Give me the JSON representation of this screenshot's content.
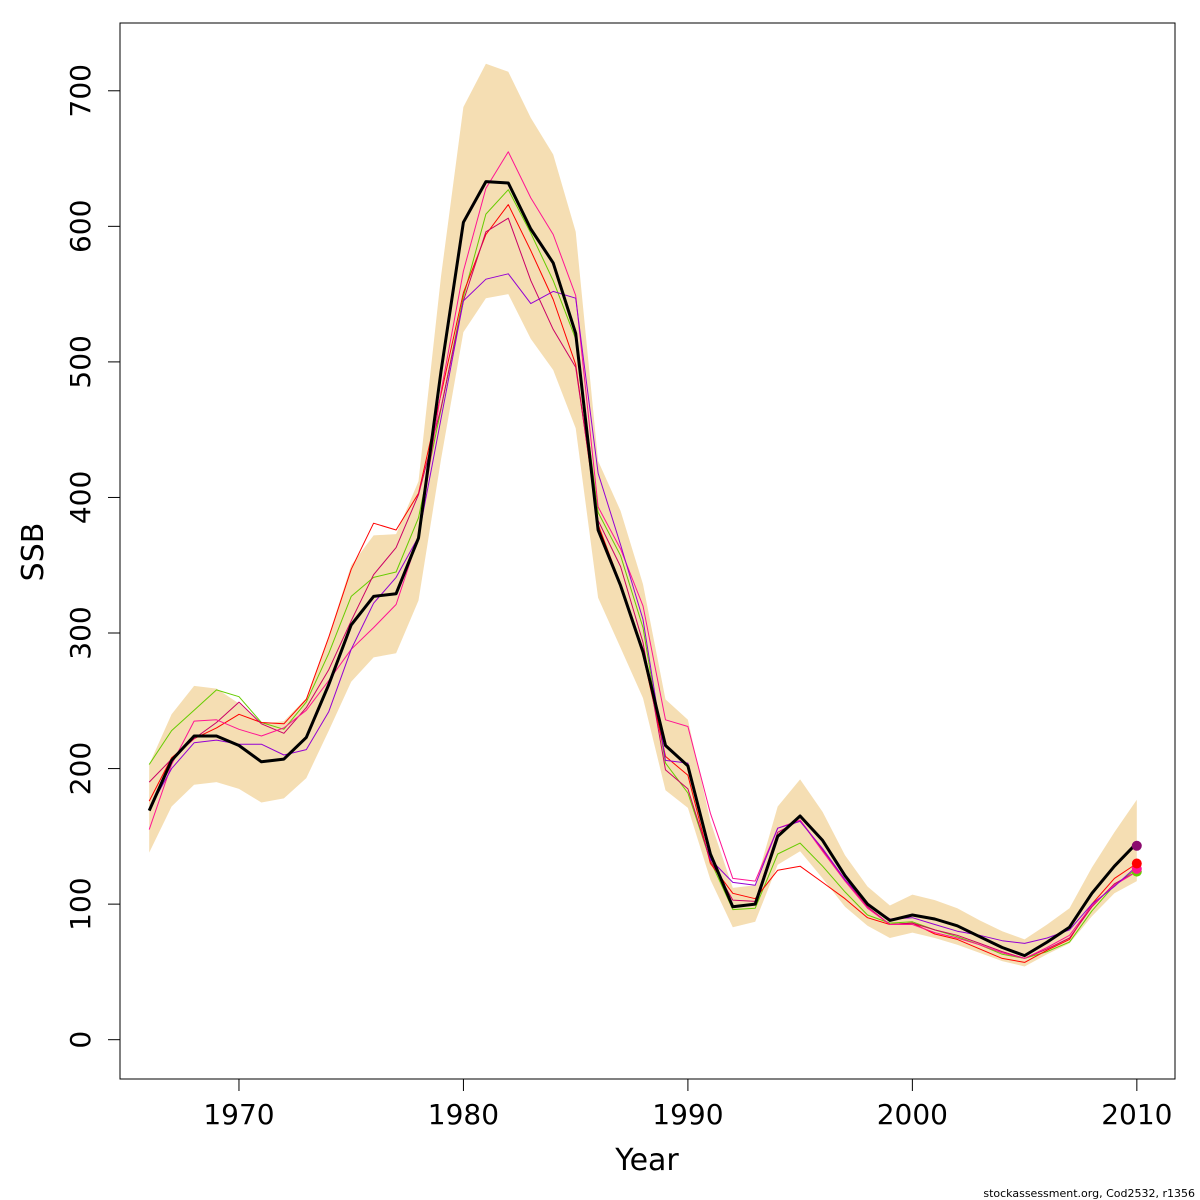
{
  "chart_data": {
    "type": "line",
    "xlabel": "Year",
    "ylabel": "SSB",
    "xlim": [
      1964.7,
      2011.7
    ],
    "ylim": [
      -29,
      750
    ],
    "x_ticks": [
      1970,
      1980,
      1990,
      2000,
      2010
    ],
    "y_ticks": [
      0,
      100,
      200,
      300,
      400,
      500,
      600,
      700
    ],
    "grid": false,
    "legend": "none",
    "credit": "stockassessment.org, Cod2532, r1356",
    "confidence_band": {
      "color": "#f5deb3",
      "x": [
        1966,
        1967,
        1968,
        1969,
        1970,
        1971,
        1972,
        1973,
        1974,
        1975,
        1976,
        1977,
        1978,
        1979,
        1980,
        1981,
        1982,
        1983,
        1984,
        1985,
        1986,
        1987,
        1988,
        1989,
        1990,
        1991,
        1992,
        1993,
        1994,
        1995,
        1996,
        1997,
        1998,
        1999,
        2000,
        2001,
        2002,
        2003,
        2004,
        2005,
        2006,
        2007,
        2008,
        2009,
        2010
      ],
      "lower": [
        138,
        172,
        188,
        190,
        185,
        175,
        178,
        193,
        228,
        264,
        282,
        285,
        324,
        428,
        522,
        547,
        550,
        517,
        494,
        451,
        326,
        289,
        252,
        184,
        171,
        118,
        83,
        87,
        129,
        139,
        119,
        98,
        84,
        75,
        79,
        75,
        70,
        64,
        58,
        54,
        63,
        71,
        91,
        108,
        117
      ],
      "upper": [
        203,
        240,
        261,
        259,
        248,
        233,
        235,
        252,
        298,
        350,
        372,
        373,
        412,
        563,
        688,
        720,
        714,
        680,
        653,
        596,
        427,
        390,
        336,
        251,
        236,
        161,
        112,
        114,
        172,
        192,
        168,
        136,
        113,
        99,
        107,
        103,
        97,
        88,
        80,
        74,
        85,
        97,
        127,
        153,
        177
      ]
    },
    "estimate": {
      "color": "#000000",
      "x": [
        1966,
        1967,
        1968,
        1969,
        1970,
        1971,
        1972,
        1973,
        1974,
        1975,
        1976,
        1977,
        1978,
        1979,
        1980,
        1981,
        1982,
        1983,
        1984,
        1985,
        1986,
        1987,
        1988,
        1989,
        1990,
        1991,
        1992,
        1993,
        1994,
        1995,
        1996,
        1997,
        1998,
        1999,
        2000,
        2001,
        2002,
        2003,
        2004,
        2005,
        2006,
        2007,
        2008,
        2009,
        2010
      ],
      "y": [
        169,
        206,
        224,
        224,
        217,
        205,
        207,
        223,
        262,
        306,
        327,
        329,
        370,
        493,
        603,
        633,
        632,
        598,
        573,
        521,
        376,
        335,
        286,
        217,
        202,
        137,
        98,
        100,
        150,
        165,
        147,
        121,
        100,
        88,
        92,
        89,
        84,
        76,
        68,
        62,
        72,
        83,
        108,
        128,
        145
      ]
    },
    "series": [
      {
        "color": "#66cc00",
        "x": [
          1966,
          1967,
          1968,
          1969,
          1970,
          1971,
          1972,
          1973,
          1974,
          1975,
          1976,
          1977,
          1978,
          1979,
          1980,
          1981,
          1982,
          1983,
          1984,
          1985,
          1986,
          1987,
          1988,
          1989,
          1990,
          1991,
          1992,
          1993,
          1994,
          1995,
          1996,
          1997,
          1998,
          1999,
          2000,
          2001,
          2002,
          2003,
          2004,
          2005,
          2006,
          2007,
          2008,
          2009,
          2010
        ],
        "y": [
          203,
          228,
          243,
          258,
          253,
          234,
          229,
          249,
          285,
          327,
          341,
          345,
          385,
          465,
          548,
          609,
          627,
          595,
          560,
          517,
          389,
          357,
          304,
          204,
          182,
          132,
          96,
          97,
          137,
          145,
          128,
          109,
          92,
          86,
          87,
          81,
          76,
          70,
          63,
          60,
          65,
          72,
          95,
          114,
          126
        ]
      },
      {
        "color": "#ff0000",
        "x": [
          1966,
          1967,
          1968,
          1969,
          1970,
          1971,
          1972,
          1973,
          1974,
          1975,
          1976,
          1977,
          1978,
          1979,
          1980,
          1981,
          1982,
          1983,
          1984,
          1985,
          1986,
          1987,
          1988,
          1989,
          1990,
          1991,
          1992,
          1993,
          1994,
          1995,
          1996,
          1997,
          1998,
          1999,
          2000,
          2001,
          2002,
          2003,
          2004,
          2005,
          2006,
          2007,
          2008,
          2009,
          2010
        ],
        "y": [
          176,
          208,
          222,
          230,
          240,
          234,
          233,
          251,
          297,
          347,
          381,
          376,
          403,
          476,
          551,
          594,
          616,
          582,
          546,
          498,
          380,
          336,
          284,
          209,
          195,
          130,
          108,
          104,
          125,
          128,
          116,
          104,
          90,
          85,
          86,
          78,
          74,
          67,
          60,
          57,
          66,
          74,
          100,
          119,
          130
        ]
      },
      {
        "color": "#cc0066",
        "x": [
          1966,
          1967,
          1968,
          1969,
          1970,
          1971,
          1972,
          1973,
          1974,
          1975,
          1976,
          1977,
          1978,
          1979,
          1980,
          1981,
          1982,
          1983,
          1984,
          1985,
          1986,
          1987,
          1988,
          1989,
          1990,
          1991,
          1992,
          1993,
          1994,
          1995,
          1996,
          1997,
          1998,
          1999,
          2000,
          2001,
          2002,
          2003,
          2004,
          2005,
          2006,
          2007,
          2008,
          2009,
          2010
        ],
        "y": [
          190,
          207,
          222,
          234,
          249,
          233,
          226,
          245,
          273,
          309,
          343,
          363,
          402,
          466,
          545,
          596,
          606,
          560,
          524,
          496,
          383,
          349,
          293,
          199,
          185,
          132,
          103,
          102,
          153,
          162,
          140,
          118,
          98,
          85,
          86,
          81,
          77,
          71,
          65,
          60,
          67,
          75,
          98,
          115,
          124
        ]
      },
      {
        "color": "#ff1493",
        "x": [
          1966,
          1967,
          1968,
          1969,
          1970,
          1971,
          1972,
          1973,
          1974,
          1975,
          1976,
          1977,
          1978,
          1979,
          1980,
          1981,
          1982,
          1983,
          1984,
          1985,
          1986,
          1987,
          1988,
          1989,
          1990,
          1991,
          1992,
          1993,
          1994,
          1995,
          1996,
          1997,
          1998,
          1999,
          2000,
          2001,
          2002,
          2003,
          2004,
          2005,
          2006,
          2007,
          2008,
          2009,
          2010
        ],
        "y": [
          155,
          203,
          235,
          236,
          229,
          224,
          230,
          243,
          265,
          288,
          304,
          321,
          371,
          478,
          567,
          628,
          655,
          621,
          594,
          549,
          393,
          362,
          320,
          236,
          231,
          167,
          119,
          117,
          156,
          162,
          139,
          117,
          97,
          85,
          85,
          79,
          75,
          70,
          64,
          60,
          68,
          77,
          99,
          114,
          124
        ]
      },
      {
        "color": "#9400d3",
        "x": [
          1966,
          1967,
          1968,
          1969,
          1970,
          1971,
          1972,
          1973,
          1974,
          1975,
          1976,
          1977,
          1978,
          1979,
          1980,
          1981,
          1982,
          1983,
          1984,
          1985,
          1986,
          1987,
          1988,
          1989,
          1990,
          1991,
          1992,
          1993,
          1994,
          1995,
          1996,
          1997,
          1998,
          1999,
          2000,
          2001,
          2002,
          2003,
          2004,
          2005,
          2006,
          2007,
          2008,
          2009,
          2010
        ],
        "y": [
          170,
          200,
          219,
          221,
          218,
          218,
          210,
          214,
          242,
          288,
          322,
          341,
          371,
          458,
          545,
          561,
          565,
          543,
          552,
          547,
          418,
          365,
          310,
          206,
          204,
          133,
          116,
          114,
          156,
          161,
          141,
          118,
          100,
          89,
          90,
          85,
          80,
          77,
          73,
          71,
          75,
          81,
          100,
          113,
          128
        ]
      }
    ],
    "endpoints": [
      {
        "x": 2010,
        "y": 143,
        "color": "#8b0a6e"
      },
      {
        "x": 2010,
        "y": 130,
        "color": "#ff0000"
      },
      {
        "x": 2010,
        "y": 126,
        "color": "#ff1493"
      },
      {
        "x": 2010,
        "y": 124,
        "color": "#66cc00"
      }
    ]
  }
}
